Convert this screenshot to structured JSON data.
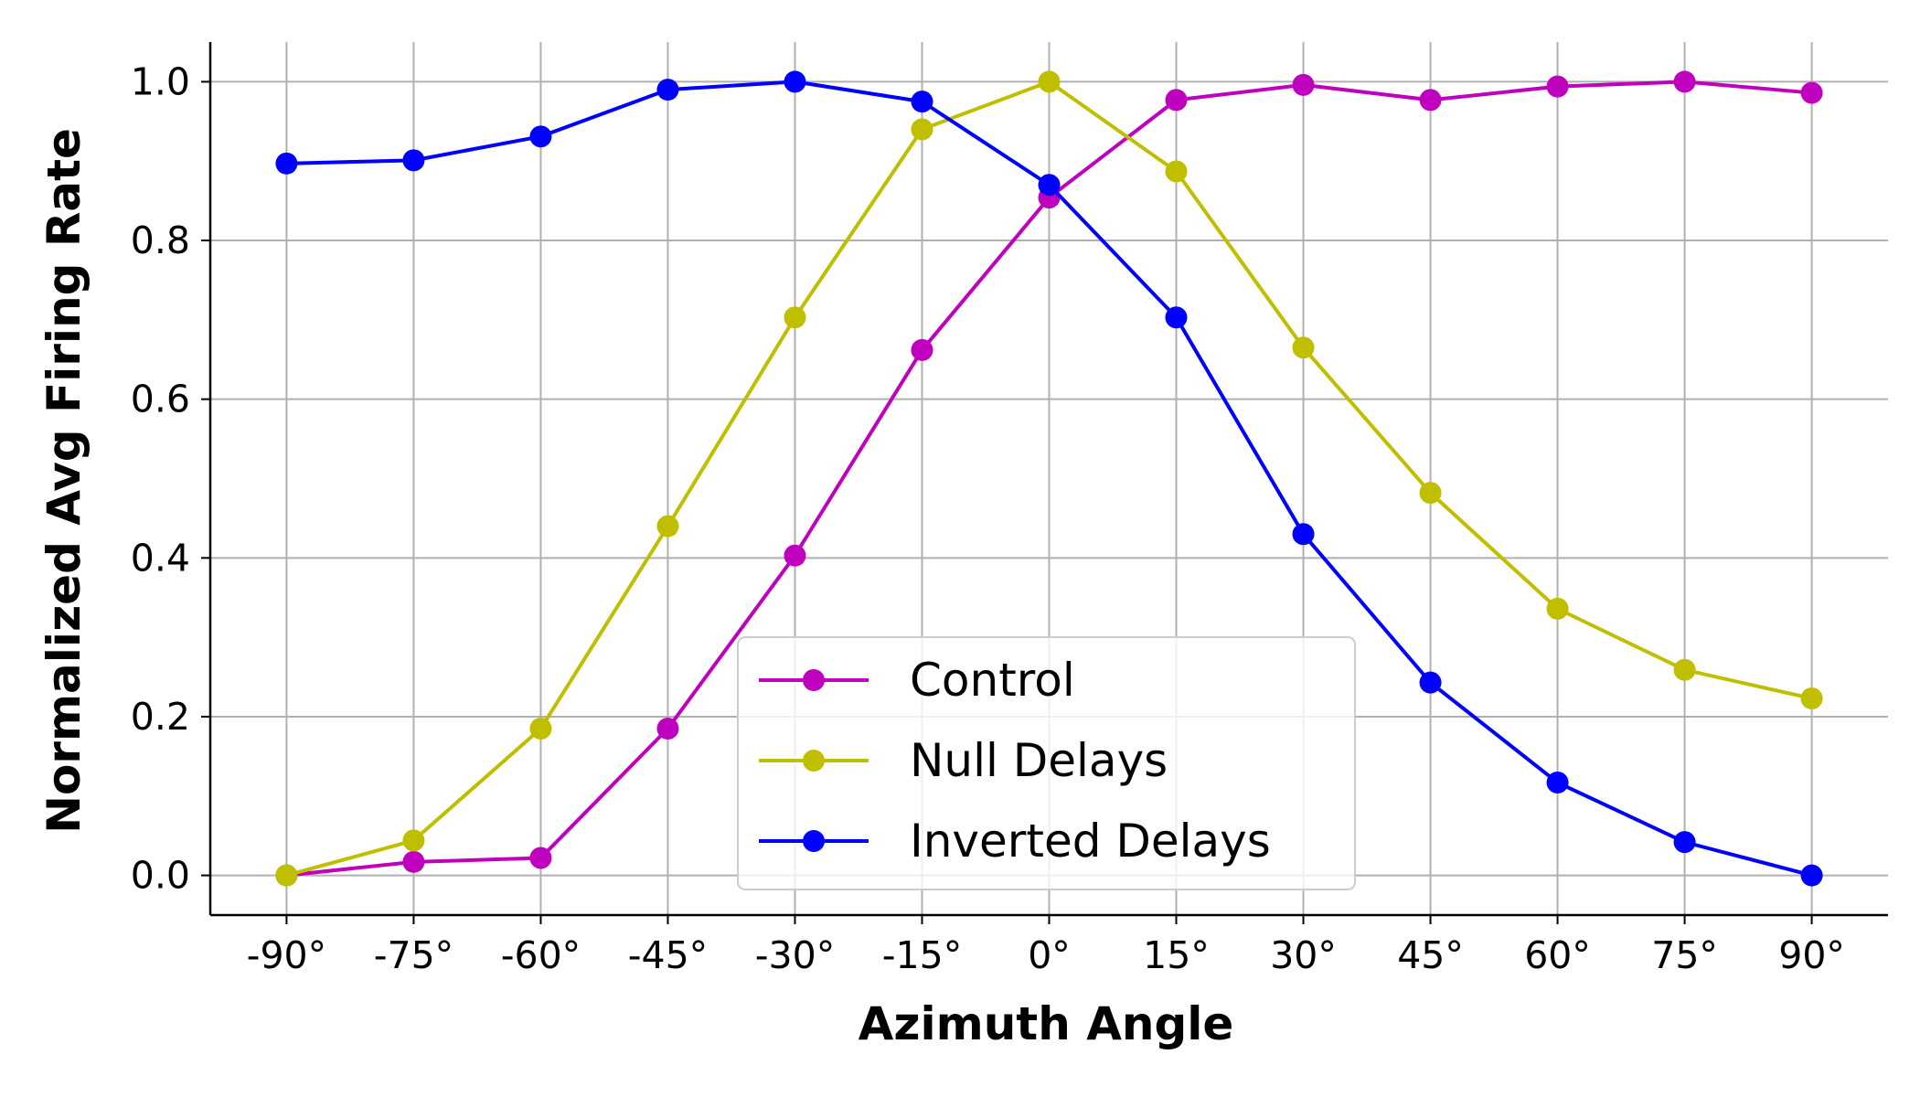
{
  "chart_data": {
    "type": "line",
    "title": "",
    "xlabel": "Azimuth Angle",
    "ylabel": "Normalized Avg Firing Rate",
    "categories": [
      "-90°",
      "-75°",
      "-60°",
      "-45°",
      "-30°",
      "-15°",
      "0°",
      "15°",
      "30°",
      "45°",
      "60°",
      "75°",
      "90°"
    ],
    "x": [
      -90,
      -75,
      -60,
      -45,
      -30,
      -15,
      0,
      15,
      30,
      45,
      60,
      75,
      90
    ],
    "xlim": [
      -99,
      99
    ],
    "ylim": [
      -0.05,
      1.05
    ],
    "yticks": [
      0.0,
      0.2,
      0.4,
      0.6,
      0.8,
      1.0
    ],
    "ytick_labels": [
      "0.0",
      "0.2",
      "0.4",
      "0.6",
      "0.8",
      "1.0"
    ],
    "grid": true,
    "legend_position": "lower-center",
    "series": [
      {
        "name": "Control",
        "color": "#bf00bf",
        "values": [
          0.0,
          0.017,
          0.022,
          0.185,
          0.403,
          0.662,
          0.854,
          0.977,
          0.996,
          0.977,
          0.994,
          1.0,
          0.986
        ]
      },
      {
        "name": "Null Delays",
        "color": "#bfbf00",
        "values": [
          0.0,
          0.044,
          0.185,
          0.44,
          0.703,
          0.94,
          1.0,
          0.887,
          0.665,
          0.482,
          0.336,
          0.259,
          0.223
        ]
      },
      {
        "name": "Inverted Delays",
        "color": "#0000ff",
        "values": [
          0.897,
          0.901,
          0.931,
          0.99,
          1.0,
          0.975,
          0.87,
          0.703,
          0.43,
          0.243,
          0.117,
          0.042,
          0.0
        ]
      }
    ]
  }
}
